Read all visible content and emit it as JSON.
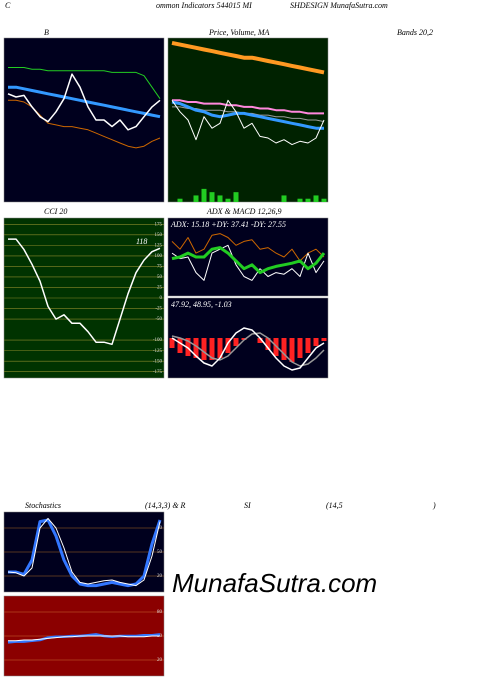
{
  "header": {
    "left": "C",
    "middle": "ommon Indicators 544015 MI",
    "right": "SHDESIGN MunafaSutra.com"
  },
  "watermark": "MunafaSutra.com",
  "titles": [
    "B",
    "Price, Volume, MA",
    "Bands 20,2",
    "CCI 20",
    "ADX  & MACD 12,26,9",
    "Stochastics",
    "(14,3,3) & R",
    "SI",
    "(14,5",
    ")"
  ],
  "chart_data": [
    {
      "type": "line",
      "background": "#00001e",
      "ylim": [
        0,
        100
      ],
      "series": [
        {
          "name": "upper",
          "color": "#22cc22",
          "width": 1,
          "values": [
            82,
            82,
            82,
            81,
            81,
            80,
            80,
            80,
            80,
            80,
            80,
            80,
            80,
            79,
            79,
            79,
            79,
            77,
            70,
            63
          ]
        },
        {
          "name": "middle",
          "color": "#3399ff",
          "width": 3,
          "values": [
            70,
            70,
            69,
            68,
            67,
            66,
            65,
            64,
            63,
            62,
            61,
            60,
            59,
            58,
            57,
            56,
            55,
            54,
            53,
            52
          ]
        },
        {
          "name": "lower",
          "color": "#cc6600",
          "width": 1,
          "values": [
            62,
            62,
            61,
            58,
            53,
            48,
            47,
            46,
            46,
            45,
            44,
            42,
            40,
            38,
            36,
            34,
            33,
            34,
            37,
            39
          ]
        },
        {
          "name": "close",
          "color": "#ffffff",
          "width": 1.5,
          "values": [
            66,
            64,
            65,
            58,
            52,
            49,
            55,
            63,
            78,
            70,
            58,
            50,
            50,
            46,
            50,
            44,
            46,
            52,
            58,
            62
          ]
        }
      ]
    },
    {
      "type": "line",
      "background": "#002200",
      "ylim": [
        0,
        100
      ],
      "y2lim": [
        0,
        50
      ],
      "series": [
        {
          "name": "ma-long",
          "color": "#ff9922",
          "width": 4,
          "values": [
            97,
            96,
            95,
            94,
            93,
            92,
            91,
            90,
            89,
            88,
            88,
            87,
            86,
            85,
            84,
            83,
            82,
            81,
            80,
            79
          ]
        },
        {
          "name": "ma-mid",
          "color": "#ff88dd",
          "width": 2,
          "values": [
            62,
            62,
            61,
            61,
            60,
            60,
            60,
            59,
            59,
            58,
            58,
            57,
            57,
            56,
            56,
            55,
            55,
            54,
            54,
            54
          ]
        },
        {
          "name": "ma-gray",
          "color": "#999999",
          "width": 1,
          "values": [
            58,
            58,
            57,
            57,
            56,
            56,
            56,
            55,
            55,
            54,
            54,
            53,
            53,
            52,
            52,
            51,
            51,
            50,
            50,
            49
          ]
        },
        {
          "name": "ma-short",
          "color": "#3399ff",
          "width": 3,
          "values": [
            61,
            60,
            58,
            56,
            55,
            53,
            52,
            53,
            54,
            54,
            53,
            52,
            51,
            50,
            49,
            48,
            47,
            46,
            45,
            45
          ]
        },
        {
          "name": "close",
          "color": "#ffffff",
          "width": 1,
          "values": [
            62,
            55,
            50,
            38,
            52,
            45,
            48,
            62,
            55,
            45,
            48,
            40,
            39,
            36,
            38,
            35,
            37,
            36,
            39,
            50
          ]
        },
        {
          "name": "volume",
          "color": "#22cc22",
          "kind": "bar",
          "axis": "y2",
          "values": [
            0,
            1,
            0,
            2,
            4,
            3,
            2,
            1,
            3,
            0,
            0,
            0,
            0,
            0,
            2,
            0,
            1,
            1,
            2,
            1
          ]
        }
      ]
    },
    {
      "type": "line",
      "background": "#003300",
      "gridcolor": "#8a8a2a",
      "ylim": [
        -190,
        190
      ],
      "yticks": [
        175,
        150,
        125,
        100,
        75,
        50,
        25,
        0,
        -25,
        -50,
        -100,
        -125,
        -150,
        -175
      ],
      "annotation": "118",
      "series": [
        {
          "name": "cci",
          "color": "#ffffff",
          "width": 1.5,
          "values": [
            140,
            140,
            115,
            80,
            40,
            -20,
            -50,
            -40,
            -60,
            -60,
            -80,
            -105,
            -105,
            -110,
            -50,
            10,
            60,
            90,
            110,
            118
          ]
        }
      ]
    },
    {
      "type": "line",
      "background": "#00001e",
      "ylim": [
        0,
        100
      ],
      "annotation": "ADX: 15.18  +DY: 37.41 -DY: 27.55",
      "series": [
        {
          "name": "plus-di",
          "color": "#cc6600",
          "width": 1,
          "values": [
            70,
            60,
            75,
            55,
            60,
            78,
            80,
            75,
            65,
            70,
            72,
            60,
            62,
            55,
            50,
            60,
            45,
            55,
            60,
            50
          ]
        },
        {
          "name": "minus-di",
          "color": "#ffffff",
          "width": 1,
          "values": [
            55,
            48,
            50,
            30,
            20,
            55,
            60,
            65,
            40,
            25,
            20,
            35,
            25,
            30,
            28,
            35,
            25,
            55,
            30,
            45
          ]
        },
        {
          "name": "adx",
          "color": "#22cc22",
          "width": 3,
          "values": [
            48,
            50,
            55,
            50,
            50,
            60,
            62,
            55,
            45,
            35,
            40,
            30,
            35,
            38,
            40,
            42,
            45,
            35,
            42,
            55
          ]
        }
      ]
    },
    {
      "type": "line",
      "background": "#00001e",
      "ylim": [
        -40,
        40
      ],
      "annotation": "47.92, 48.95, -1.03",
      "series": [
        {
          "name": "histogram",
          "color": "#ff2222",
          "kind": "bar",
          "values": [
            -10,
            -15,
            -18,
            -20,
            -22,
            -22,
            -20,
            -15,
            -8,
            -2,
            0,
            -5,
            -12,
            -18,
            -22,
            -24,
            -20,
            -15,
            -8,
            -3
          ]
        },
        {
          "name": "signal",
          "color": "#999999",
          "width": 1.5,
          "values": [
            2,
            0,
            -3,
            -8,
            -14,
            -20,
            -22,
            -18,
            -10,
            -2,
            4,
            5,
            0,
            -8,
            -16,
            -24,
            -28,
            -26,
            -20,
            -12
          ]
        },
        {
          "name": "macd",
          "color": "#ffffff",
          "width": 1.5,
          "values": [
            0,
            -5,
            -10,
            -18,
            -25,
            -28,
            -20,
            -5,
            5,
            10,
            8,
            0,
            -10,
            -20,
            -28,
            -32,
            -30,
            -20,
            -10,
            -5
          ]
        }
      ]
    },
    {
      "type": "line",
      "background": "#00001e",
      "gridcolor": "#aa6622",
      "ylim": [
        0,
        100
      ],
      "yticks": [
        80,
        50,
        20
      ],
      "series": [
        {
          "name": "k",
          "color": "#3377ff",
          "width": 3,
          "values": [
            25,
            25,
            22,
            40,
            88,
            90,
            70,
            40,
            20,
            10,
            8,
            8,
            10,
            12,
            10,
            8,
            10,
            20,
            60,
            90
          ]
        },
        {
          "name": "d",
          "color": "#ffffff",
          "width": 1,
          "values": [
            25,
            24,
            20,
            30,
            80,
            92,
            80,
            55,
            25,
            12,
            10,
            12,
            14,
            15,
            12,
            10,
            8,
            15,
            45,
            88
          ]
        }
      ]
    },
    {
      "type": "line",
      "background": "#8b0000",
      "gridcolor": "#cc6633",
      "ylim": [
        0,
        100
      ],
      "yticks": [
        80,
        50,
        20
      ],
      "series": [
        {
          "name": "rsi",
          "color": "#3377ff",
          "width": 2.5,
          "values": [
            42,
            43,
            43,
            44,
            45,
            48,
            49,
            49,
            50,
            50,
            51,
            52,
            50,
            49,
            50,
            50,
            50,
            51,
            51,
            52
          ]
        },
        {
          "name": "rsi-avg",
          "color": "#ffffff",
          "width": 1,
          "values": [
            44,
            44,
            45,
            45,
            46,
            47,
            48,
            49,
            49,
            50,
            50,
            50,
            50,
            50,
            50,
            49,
            49,
            49,
            50,
            50
          ]
        }
      ]
    }
  ]
}
